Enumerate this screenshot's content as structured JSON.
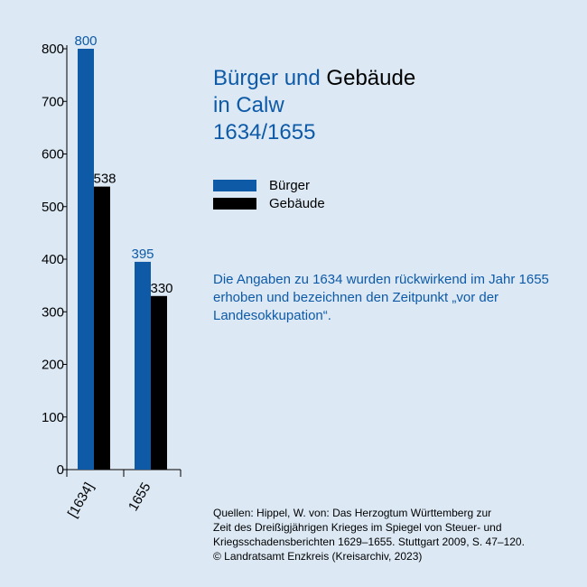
{
  "colors": {
    "background": "#dce9f5",
    "buerger": "#0e5aa7",
    "gebaeude": "#000000"
  },
  "title": {
    "line1_a": "Bürger und",
    "line1_b": "Gebäude",
    "line2": "in Calw",
    "line3": "1634/1655"
  },
  "legend": {
    "series1": "Bürger",
    "series2": "Gebäude"
  },
  "note": "Die Angaben zu 1634 wurden rückwirkend im Jahr 1655 erhoben und bezeichnen den Zeitpunkt „vor der Landesokkupation“.",
  "source": [
    "Quellen: Hippel, W. von: Das Herzogtum Württemberg zur",
    "Zeit des Dreißigjährigen Krieges im Spiegel von Steuer- und",
    "Kriegsschadensberichten 1629–1655. Stuttgart 2009, S. 47–120.",
    "© Landratsamt Enzkreis (Kreisarchiv, 2023)"
  ],
  "chart_data": {
    "type": "bar",
    "categories": [
      "[1634]",
      "1655"
    ],
    "series": [
      {
        "name": "Bürger",
        "values": [
          800,
          395
        ],
        "color": "#0e5aa7"
      },
      {
        "name": "Gebäude",
        "values": [
          538,
          330
        ],
        "color": "#000000"
      }
    ],
    "yticks": [
      0,
      100,
      200,
      300,
      400,
      500,
      600,
      700,
      800
    ],
    "ylim": [
      0,
      800
    ],
    "grid": false,
    "legend_position": "right"
  }
}
